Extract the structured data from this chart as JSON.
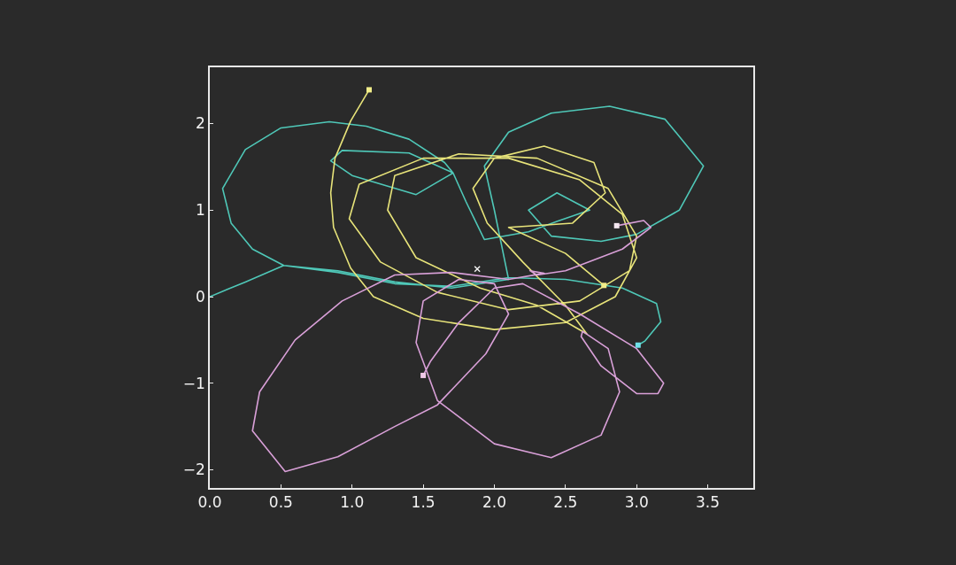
{
  "chart_data": {
    "type": "line",
    "xlim": [
      0,
      3.82
    ],
    "ylim": [
      -2.21,
      2.65
    ],
    "xticks": [
      {
        "value": 0,
        "label": "0.0"
      },
      {
        "value": 0.5,
        "label": "0.5"
      },
      {
        "value": 1,
        "label": "1.0"
      },
      {
        "value": 1.5,
        "label": "1.5"
      },
      {
        "value": 2,
        "label": "2.0"
      },
      {
        "value": 2.5,
        "label": "2.5"
      },
      {
        "value": 3,
        "label": "3.0"
      },
      {
        "value": 3.5,
        "label": "3.5"
      }
    ],
    "yticks": [
      {
        "value": -2,
        "label": "−2"
      },
      {
        "value": -1,
        "label": "−1"
      },
      0,
      1,
      2
    ],
    "marker": "none",
    "line_style": "solid",
    "series": [
      {
        "color": "#4fc8b8",
        "x": [
          0,
          0.25,
          0.52,
          0.9,
          1.3,
          1.7,
          2.1,
          2.0,
          1.93,
          2.1,
          2.4,
          2.81,
          3.2,
          3.47,
          3.3,
          3.0,
          2.75,
          2.4,
          2.24,
          2.44,
          2.67,
          2.44,
          2.24,
          1.93,
          1.8,
          1.71,
          1.45,
          1.0,
          0.85,
          0.93,
          1.4,
          1.71,
          1.65,
          1.4,
          1.1,
          0.84,
          0.5,
          0.25,
          0.09,
          0.15,
          0.3,
          0.52,
          0.9,
          1.3,
          1.7,
          2.1,
          2.5,
          2.9,
          3.14,
          3.17,
          3.06,
          3.01
        ],
        "values": [
          0,
          0.17,
          0.36,
          0.3,
          0.17,
          0.1,
          0.2,
          1.0,
          1.51,
          1.9,
          2.12,
          2.2,
          2.05,
          1.51,
          1.0,
          0.72,
          0.64,
          0.7,
          1.0,
          1.2,
          1.0,
          0.87,
          0.75,
          0.66,
          1.1,
          1.43,
          1.18,
          1.4,
          1.57,
          1.69,
          1.66,
          1.43,
          1.55,
          1.82,
          1.97,
          2.02,
          1.95,
          1.7,
          1.25,
          0.85,
          0.55,
          0.36,
          0.28,
          0.15,
          0.12,
          0.22,
          0.2,
          0.1,
          -0.08,
          -0.29,
          -0.51,
          -0.56
        ]
      },
      {
        "color": "#e8e47a",
        "x": [
          1.12,
          0.99,
          0.88,
          0.85,
          0.87,
          0.99,
          1.15,
          1.5,
          2.0,
          2.5,
          2.85,
          3.0,
          2.9,
          2.6,
          2.1,
          1.5,
          1.05,
          0.98,
          1.2,
          1.6,
          2.1,
          2.6,
          2.95,
          3.0,
          2.8,
          2.3,
          1.75,
          1.3,
          1.25,
          1.45,
          1.9,
          2.3,
          2.65,
          2.5,
          2.2,
          1.95,
          1.85,
          2.0,
          2.35,
          2.7,
          2.78,
          2.55,
          2.1,
          2.5,
          2.77
        ],
        "values": [
          2.39,
          2.03,
          1.6,
          1.2,
          0.8,
          0.33,
          0.0,
          -0.25,
          -0.38,
          -0.3,
          0.0,
          0.45,
          0.95,
          1.35,
          1.6,
          1.6,
          1.3,
          0.9,
          0.4,
          0.05,
          -0.15,
          -0.05,
          0.3,
          0.7,
          1.25,
          1.6,
          1.65,
          1.4,
          1.0,
          0.45,
          0.1,
          -0.1,
          -0.43,
          -0.1,
          0.4,
          0.85,
          1.25,
          1.6,
          1.74,
          1.55,
          1.2,
          0.85,
          0.8,
          0.5,
          0.13
        ]
      },
      {
        "color": "#d9a0d8",
        "x": [
          2.86,
          3.05,
          3.1,
          2.9,
          2.5,
          2.3,
          2.25,
          2.35,
          2.1,
          1.7,
          1.3,
          0.93,
          0.6,
          0.35,
          0.3,
          0.53,
          0.9,
          1.3,
          1.6,
          1.94,
          2.1,
          2.0,
          1.75,
          1.5,
          1.45,
          1.6,
          2.0,
          2.4,
          2.75,
          2.88,
          2.8,
          2.62,
          2.61,
          2.75,
          3.0,
          3.15,
          3.19,
          3.0,
          2.6,
          2.2,
          2.0,
          1.75,
          1.55,
          1.5
        ],
        "values": [
          0.82,
          0.88,
          0.8,
          0.55,
          0.3,
          0.25,
          0.3,
          0.27,
          0.2,
          0.28,
          0.25,
          -0.05,
          -0.5,
          -1.1,
          -1.55,
          -2.02,
          -1.85,
          -1.5,
          -1.25,
          -0.66,
          -0.2,
          0.15,
          0.2,
          -0.05,
          -0.53,
          -1.2,
          -1.7,
          -1.86,
          -1.6,
          -1.1,
          -0.6,
          -0.4,
          -0.46,
          -0.8,
          -1.12,
          -1.12,
          -1.0,
          -0.6,
          -0.2,
          0.15,
          0.1,
          -0.3,
          -0.75,
          -0.91
        ]
      },
      {
        "type": "scatter",
        "marker": "square",
        "x": [
          1.12,
          2.77,
          3.01,
          1.5,
          2.86
        ],
        "values": [
          2.39,
          0.13,
          -0.56,
          -0.91,
          0.82
        ],
        "colors": [
          "#f2ee8a",
          "#f2ee8a",
          "#6fe0e8",
          "#f0c8e8",
          "#f4e8f0"
        ]
      },
      {
        "type": "scatter",
        "marker": "cross",
        "color": "#f4f4f4",
        "x": [
          1.88
        ],
        "values": [
          0.32
        ]
      }
    ]
  }
}
